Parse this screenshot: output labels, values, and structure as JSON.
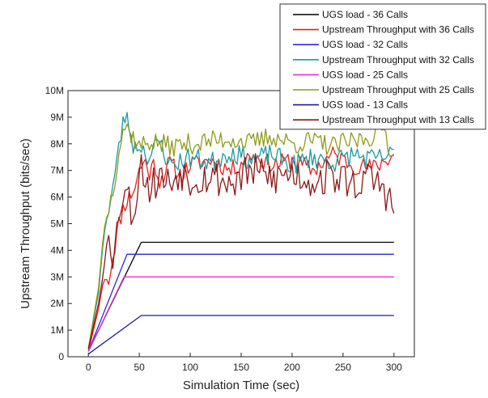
{
  "chart_data": {
    "type": "line",
    "xlabel": "Simulation Time (sec)",
    "ylabel": "Upstream Throughput (bits/sec)",
    "xlim": [
      -20,
      320
    ],
    "ylim": [
      0,
      10000000
    ],
    "xticks": [
      0,
      50,
      100,
      150,
      200,
      250,
      300
    ],
    "xtick_labels": [
      "0",
      "50",
      "100",
      "150",
      "200",
      "250",
      "300"
    ],
    "yticks": [
      0,
      1000000,
      2000000,
      3000000,
      4000000,
      5000000,
      6000000,
      7000000,
      8000000,
      9000000,
      10000000
    ],
    "ytick_labels": [
      "0",
      "1M",
      "2M",
      "3M",
      "4M",
      "5M",
      "6M",
      "7M",
      "8M",
      "9M",
      "10M"
    ],
    "grid": false,
    "legend_position": "top-right",
    "series": [
      {
        "name": "UGS load - 36 Calls",
        "color": "#000000",
        "kind": "ramp",
        "x": [
          0,
          52,
          300
        ],
        "y": [
          200000,
          4300000,
          4300000
        ]
      },
      {
        "name": "Upstream Throughput with 36 Calls",
        "color": "#e8201a",
        "kind": "noisy",
        "x": [
          0,
          10,
          15,
          20,
          25,
          30,
          35,
          40,
          45,
          50,
          55,
          60,
          65,
          70,
          80,
          90,
          100,
          120,
          140,
          160,
          180,
          200,
          220,
          240,
          260,
          280,
          300
        ],
        "y": [
          200000,
          1800000,
          2900000,
          2900000,
          4000000,
          5000000,
          5700000,
          6000000,
          6300000,
          7000000,
          7400000,
          6900000,
          7300000,
          6600000,
          7300000,
          6800000,
          7200000,
          7400000,
          7000000,
          7600000,
          7200000,
          7400000,
          7000000,
          7600000,
          7200000,
          7100000,
          7600000
        ],
        "amp": 350000,
        "seed": 11
      },
      {
        "name": "UGS load - 32 Calls",
        "color": "#2a2ad8",
        "kind": "ramp",
        "x": [
          0,
          38,
          300
        ],
        "y": [
          200000,
          3850000,
          3850000
        ]
      },
      {
        "name": "Upstream Throughput with 32 Calls",
        "color": "#1a9aa0",
        "kind": "noisy",
        "x": [
          0,
          10,
          15,
          20,
          25,
          30,
          35,
          40,
          45,
          50,
          60,
          70,
          80,
          100,
          120,
          140,
          160,
          180,
          200,
          220,
          240,
          260,
          280,
          300
        ],
        "y": [
          300000,
          2400000,
          4500000,
          5600000,
          6600000,
          7800000,
          9100000,
          8700000,
          7800000,
          8000000,
          7500000,
          8100000,
          7200000,
          7500000,
          7300000,
          7700000,
          7400000,
          7600000,
          7200000,
          7500000,
          7300000,
          7600000,
          7400000,
          7600000
        ],
        "amp": 400000,
        "seed": 23
      },
      {
        "name": "UGS load - 25 Calls",
        "color": "#e82ad8",
        "kind": "ramp",
        "x": [
          0,
          35,
          300
        ],
        "y": [
          200000,
          3000000,
          3000000
        ]
      },
      {
        "name": "Upstream Throughput with 25 Calls",
        "color": "#8f9a18",
        "kind": "noisy",
        "x": [
          0,
          10,
          15,
          20,
          25,
          30,
          35,
          40,
          45,
          50,
          60,
          70,
          80,
          100,
          120,
          140,
          160,
          180,
          200,
          220,
          240,
          260,
          280,
          290,
          300
        ],
        "y": [
          300000,
          2600000,
          4700000,
          5600000,
          6500000,
          7800000,
          8700000,
          8500000,
          8200000,
          7900000,
          8100000,
          8000000,
          7900000,
          8000000,
          8100000,
          8200000,
          8000000,
          8300000,
          8000000,
          8100000,
          7900000,
          8100000,
          8300000,
          8600000,
          7400000
        ],
        "amp": 400000,
        "seed": 37
      },
      {
        "name": "UGS load - 13 Calls",
        "color": "#1c1c9a",
        "kind": "ramp",
        "x": [
          0,
          52,
          300
        ],
        "y": [
          100000,
          1550000,
          1550000
        ]
      },
      {
        "name": "Upstream Throughput with 13 Calls",
        "color": "#8a1818",
        "kind": "noisy",
        "x": [
          0,
          10,
          15,
          20,
          25,
          30,
          35,
          40,
          45,
          50,
          55,
          60,
          70,
          80,
          90,
          100,
          120,
          140,
          160,
          180,
          200,
          220,
          240,
          260,
          280,
          290,
          300
        ],
        "y": [
          300000,
          2000000,
          3200000,
          4900000,
          3600000,
          5500000,
          6400000,
          5900000,
          5200000,
          7300000,
          6900000,
          6300000,
          6800000,
          6500000,
          7000000,
          6700000,
          6800000,
          6500000,
          7000000,
          6700000,
          6900000,
          6600000,
          6800000,
          6500000,
          6700000,
          6300000,
          5600000
        ],
        "amp": 700000,
        "seed": 53
      }
    ]
  }
}
